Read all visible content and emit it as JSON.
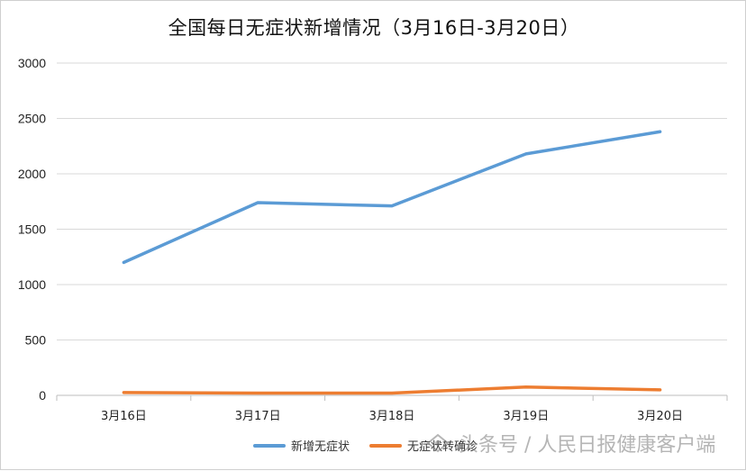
{
  "chart_data": {
    "type": "line",
    "title": "全国每日无症状新增情况（3月16日-3月20日）",
    "categories": [
      "3月16日",
      "3月17日",
      "3月18日",
      "3月19日",
      "3月20日"
    ],
    "series": [
      {
        "name": "新增无症状",
        "color": "#5b9bd5",
        "values": [
          1200,
          1740,
          1710,
          2180,
          2380
        ]
      },
      {
        "name": "无症状转确诊",
        "color": "#ed7d31",
        "values": [
          25,
          20,
          20,
          75,
          50
        ]
      }
    ],
    "yticks": [
      0,
      500,
      1000,
      1500,
      2000,
      2500,
      3000
    ],
    "ylim": [
      0,
      3000
    ],
    "grid": true,
    "legend_position": "bottom"
  },
  "watermark": {
    "text": "头条号 / 人民日报健康客户端"
  }
}
